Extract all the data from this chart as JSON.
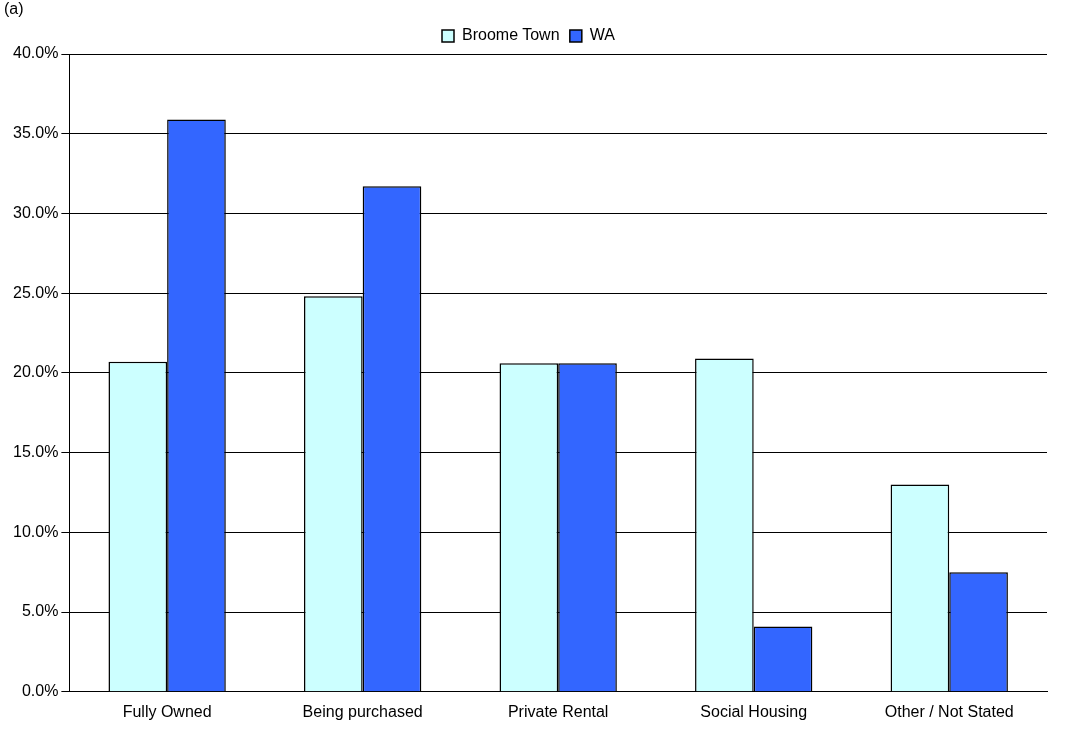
{
  "chart_data": {
    "type": "bar",
    "categories": [
      "Fully Owned",
      "Being purchased",
      "Private Rental",
      "Social Housing",
      "Other / Not Stated"
    ],
    "series": [
      {
        "name": "Broome Town",
        "color": "#ccffff",
        "values": [
          20.7,
          24.8,
          20.6,
          20.9,
          13.0
        ]
      },
      {
        "name": "WA",
        "color": "#3366ff",
        "values": [
          35.9,
          31.7,
          20.6,
          4.1,
          7.5
        ]
      }
    ],
    "ylim": [
      0,
      40
    ],
    "yticks": [
      {
        "value": 0,
        "label": "0.0%"
      },
      {
        "value": 5,
        "label": "5.0%"
      },
      {
        "value": 10,
        "label": "10.0%"
      },
      {
        "value": 15,
        "label": "15.0%"
      },
      {
        "value": 20,
        "label": "20.0%"
      },
      {
        "value": 25,
        "label": "25.0%"
      },
      {
        "value": 30,
        "label": "30.0%"
      },
      {
        "value": 35,
        "label": "35.0%"
      },
      {
        "value": 40,
        "label": "40.0%"
      }
    ],
    "grid": "y",
    "legend": "top",
    "annotations": [
      "(a)"
    ]
  }
}
